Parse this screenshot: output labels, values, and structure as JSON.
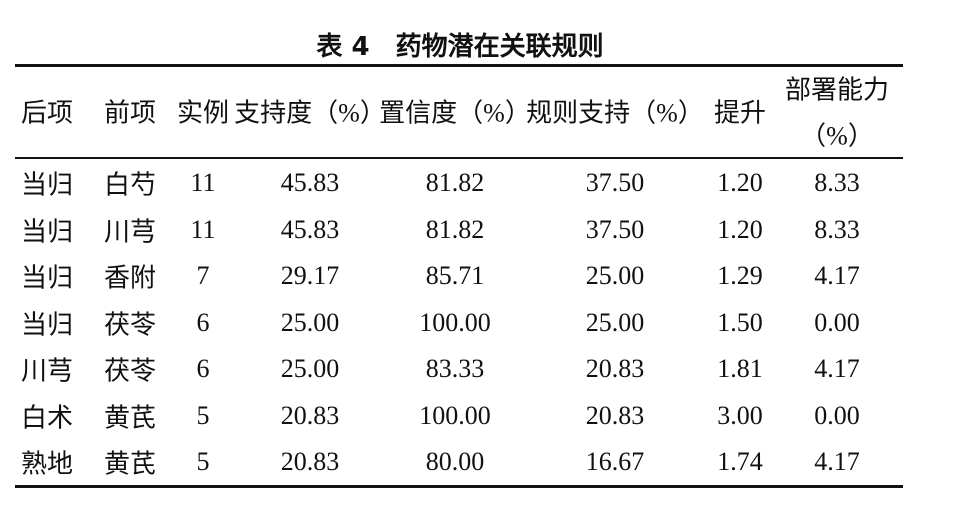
{
  "title": "表 4　药物潜在关联规则",
  "table": {
    "headers": [
      "后项",
      "前项",
      "实例",
      "支持度（%）",
      "置信度（%）",
      "规则支持（%）",
      "提升",
      [
        "部署能力",
        "（%）"
      ]
    ],
    "rows": [
      [
        "当归",
        "白芍",
        "11",
        "45.83",
        "81.82",
        "37.50",
        "1.20",
        "8.33"
      ],
      [
        "当归",
        "川芎",
        "11",
        "45.83",
        "81.82",
        "37.50",
        "1.20",
        "8.33"
      ],
      [
        "当归",
        "香附",
        "7",
        "29.17",
        "85.71",
        "25.00",
        "1.29",
        "4.17"
      ],
      [
        "当归",
        "茯苓",
        "6",
        "25.00",
        "100.00",
        "25.00",
        "1.50",
        "0.00"
      ],
      [
        "川芎",
        "茯苓",
        "6",
        "25.00",
        "83.33",
        "20.83",
        "1.81",
        "4.17"
      ],
      [
        "白术",
        "黄芪",
        "5",
        "20.83",
        "100.00",
        "20.83",
        "3.00",
        "0.00"
      ],
      [
        "熟地",
        "黄芪",
        "5",
        "20.83",
        "80.00",
        "16.67",
        "1.74",
        "4.17"
      ]
    ]
  }
}
